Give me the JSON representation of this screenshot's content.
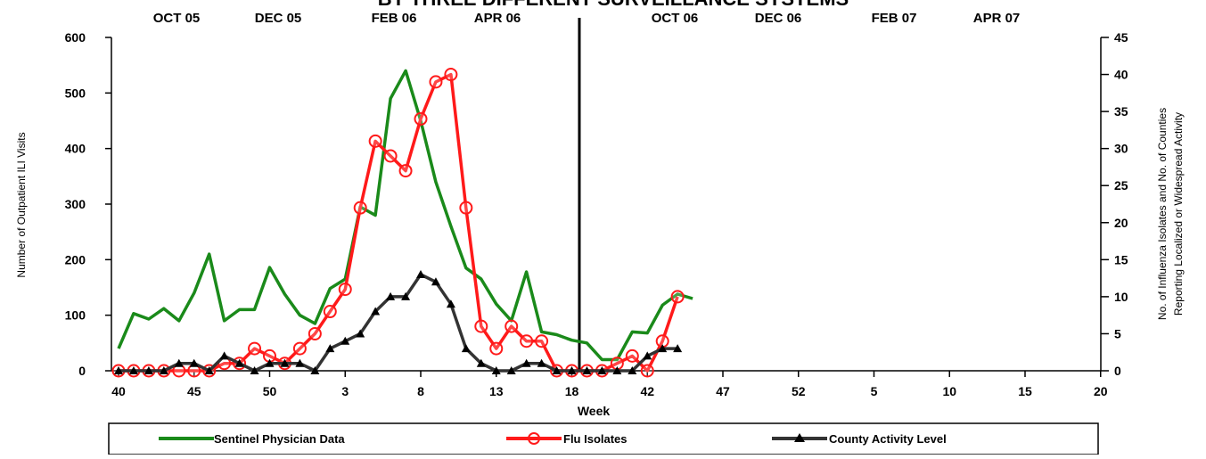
{
  "chart_data": {
    "type": "line",
    "title": "BY THREE DIFFERENT SURVEILLANCE SYSTEMS",
    "top_axis_labels": [
      "OCT 05",
      "DEC 05",
      "FEB 06",
      "APR 06",
      "OCT 06",
      "DEC 06",
      "FEB 07",
      "APR 07"
    ],
    "xlabel": "Week",
    "ylabel_left": "Number of Outpatient ILI Visits",
    "ylabel_right_line1": "No.  of  Influenza  Isolates  and  No.  of  Counties",
    "ylabel_right_line2": "Reporting Localized or Widespread Activity",
    "x_tick_labels": [
      "40",
      "45",
      "50",
      "3",
      "8",
      "13",
      "18",
      "42",
      "47",
      "52",
      "5",
      "10",
      "15",
      "20"
    ],
    "ylim_left": [
      0,
      600
    ],
    "yticks_left": [
      0,
      100,
      200,
      300,
      400,
      500,
      600
    ],
    "ylim_right": [
      0,
      45
    ],
    "yticks_right": [
      0,
      5,
      10,
      15,
      20,
      25,
      30,
      35,
      40,
      45
    ],
    "grid": false,
    "legend_position": "bottom",
    "season_divider_after_week_index": 30.5,
    "series": [
      {
        "name": "Sentinel Physician Data",
        "color": "#1a8a1a",
        "axis": "left",
        "marker": "none",
        "values": [
          40,
          103,
          93,
          112,
          90,
          140,
          210,
          90,
          110,
          110,
          186,
          138,
          100,
          85,
          148,
          165,
          295,
          280,
          490,
          540,
          450,
          340,
          260,
          185,
          165,
          120,
          90,
          178,
          70,
          65,
          55,
          50,
          20,
          20,
          70,
          68,
          118,
          138,
          130,
          null,
          null,
          null
        ]
      },
      {
        "name": "Flu Isolates",
        "color": "#ff1a1a",
        "axis": "right",
        "marker": "circle",
        "values": [
          0,
          0,
          0,
          0,
          0,
          0,
          0,
          1,
          1,
          3,
          2,
          1,
          3,
          5,
          8,
          11,
          22,
          31,
          29,
          27,
          34,
          39,
          40,
          22,
          6,
          3,
          6,
          4,
          4,
          0,
          0,
          0,
          0,
          1,
          2,
          0,
          4,
          10,
          null,
          null,
          null,
          null
        ]
      },
      {
        "name": "County Activity Level",
        "color": "#333333",
        "axis": "right",
        "marker": "triangle",
        "values": [
          0,
          0,
          0,
          0,
          1,
          1,
          0,
          2,
          1,
          0,
          1,
          1,
          1,
          0,
          3,
          4,
          5,
          8,
          10,
          10,
          13,
          12,
          9,
          3,
          1,
          0,
          0,
          1,
          1,
          0,
          0,
          0,
          0,
          0,
          0,
          2,
          3,
          3,
          null,
          null,
          null,
          null
        ]
      }
    ]
  }
}
